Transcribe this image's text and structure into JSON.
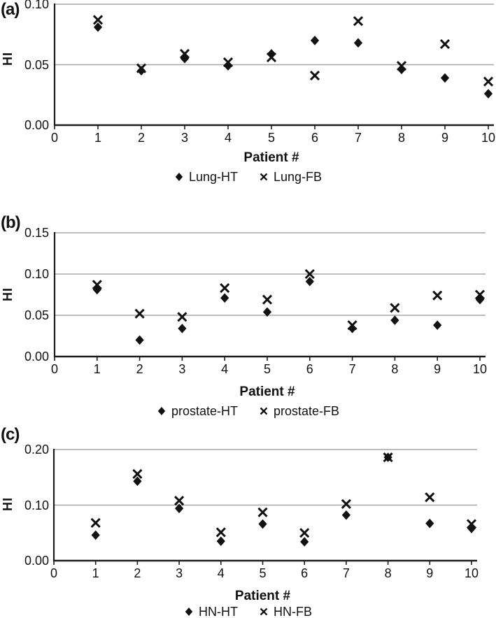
{
  "colors": {
    "marker": "#111111",
    "gridline": "#a6a6a6",
    "axis": "#1c1c1c",
    "text": "#111111",
    "background": "#ffffff"
  },
  "chart_data": [
    {
      "panel_label": "(a)",
      "type": "scatter",
      "title": "",
      "xlabel": "Patient #",
      "ylabel": "HI",
      "grid": true,
      "legend_position": "bottom",
      "x": [
        1,
        2,
        3,
        4,
        5,
        6,
        7,
        8,
        9,
        10
      ],
      "xlim": [
        0,
        10
      ],
      "xtick_labels": [
        "0",
        "1",
        "2",
        "3",
        "4",
        "5",
        "6",
        "7",
        "8",
        "9",
        "10"
      ],
      "ylim": [
        0,
        0.1
      ],
      "ytick_values": [
        0,
        0.05,
        0.1
      ],
      "ytick_labels": [
        "0.00",
        "0.05",
        "0.10"
      ],
      "gridline_values": [
        0.05,
        0.1
      ],
      "series": [
        {
          "name": "Lung-HT",
          "marker": "diamond",
          "values": [
            0.081,
            0.045,
            0.055,
            0.049,
            0.059,
            0.07,
            0.068,
            0.046,
            0.039,
            0.026
          ]
        },
        {
          "name": "Lung-FB",
          "marker": "x",
          "values": [
            0.087,
            0.047,
            0.059,
            0.052,
            0.056,
            0.041,
            0.086,
            0.049,
            0.067,
            0.036
          ]
        }
      ]
    },
    {
      "panel_label": "(b)",
      "type": "scatter",
      "title": "",
      "xlabel": "Patient #",
      "ylabel": "HI",
      "grid": true,
      "legend_position": "bottom",
      "x": [
        1,
        2,
        3,
        4,
        5,
        6,
        7,
        8,
        9,
        10
      ],
      "xlim": [
        0,
        10
      ],
      "xtick_labels": [
        "0",
        "1",
        "2",
        "3",
        "4",
        "5",
        "6",
        "7",
        "8",
        "9",
        "10"
      ],
      "ylim": [
        0,
        0.15
      ],
      "ytick_values": [
        0,
        0.05,
        0.1,
        0.15
      ],
      "ytick_labels": [
        "0.00",
        "0.05",
        "0.10",
        "0.15"
      ],
      "gridline_values": [
        0.05,
        0.1,
        0.15
      ],
      "series": [
        {
          "name": "prostate-HT",
          "marker": "diamond",
          "values": [
            0.081,
            0.02,
            0.034,
            0.071,
            0.054,
            0.091,
            0.034,
            0.044,
            0.038,
            0.069
          ]
        },
        {
          "name": "prostate-FB",
          "marker": "x",
          "values": [
            0.087,
            0.052,
            0.048,
            0.083,
            0.069,
            0.1,
            0.038,
            0.059,
            0.074,
            0.075
          ]
        }
      ]
    },
    {
      "panel_label": "(c)",
      "type": "scatter",
      "title": "",
      "xlabel": "Patient #",
      "ylabel": "HI",
      "grid": true,
      "legend_position": "bottom",
      "x": [
        1,
        2,
        3,
        4,
        5,
        6,
        7,
        8,
        9,
        10
      ],
      "xlim": [
        0,
        10
      ],
      "xtick_labels": [
        "0",
        "1",
        "2",
        "3",
        "4",
        "5",
        "6",
        "7",
        "8",
        "9",
        "10"
      ],
      "ylim": [
        0,
        0.2
      ],
      "ytick_values": [
        0,
        0.1,
        0.2
      ],
      "ytick_labels": [
        "0.00",
        "0.10",
        "0.20"
      ],
      "gridline_values": [
        0.1,
        0.2
      ],
      "series": [
        {
          "name": "HN-HT",
          "marker": "diamond",
          "values": [
            0.046,
            0.143,
            0.094,
            0.035,
            0.066,
            0.034,
            0.082,
            0.186,
            0.067,
            0.058
          ]
        },
        {
          "name": "HN-FB",
          "marker": "x",
          "values": [
            0.068,
            0.156,
            0.108,
            0.051,
            0.087,
            0.05,
            0.102,
            0.186,
            0.114,
            0.066
          ]
        }
      ]
    }
  ]
}
